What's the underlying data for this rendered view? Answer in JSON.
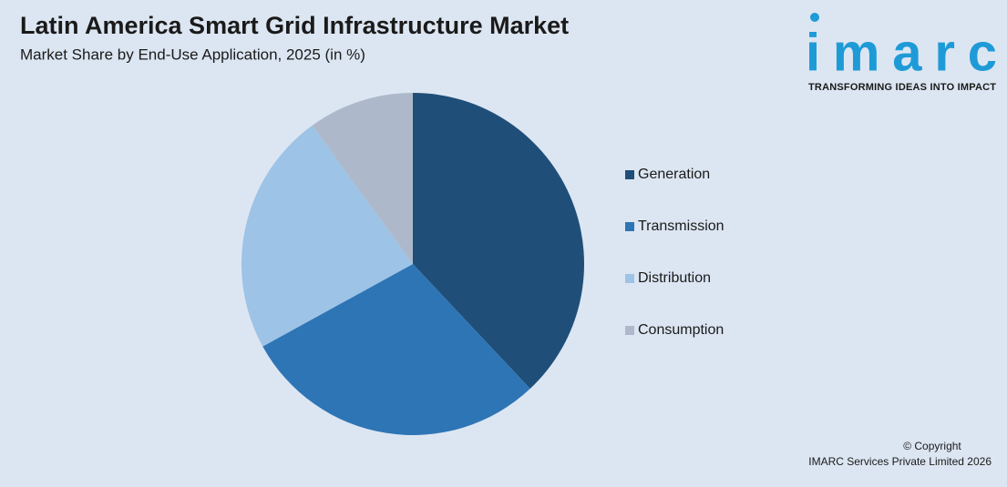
{
  "chart_data": {
    "type": "pie",
    "title": "Latin America Smart Grid Infrastructure Market",
    "subtitle": "Market Share by End-Use Application, 2025 (in %)",
    "categories": [
      "Generation",
      "Transmission",
      "Distribution",
      "Consumption"
    ],
    "values": [
      38,
      29,
      23,
      10
    ],
    "colors": [
      "#1f4e79",
      "#2e75b6",
      "#9dc3e6",
      "#adb9ca"
    ],
    "legend": "right"
  },
  "brand": {
    "logo": "imarc",
    "tagline": "TRANSFORMING IDEAS INTO IMPACT"
  },
  "footer": {
    "copyright": "© Copyright",
    "company": "IMARC Services Private Limited 2026"
  }
}
